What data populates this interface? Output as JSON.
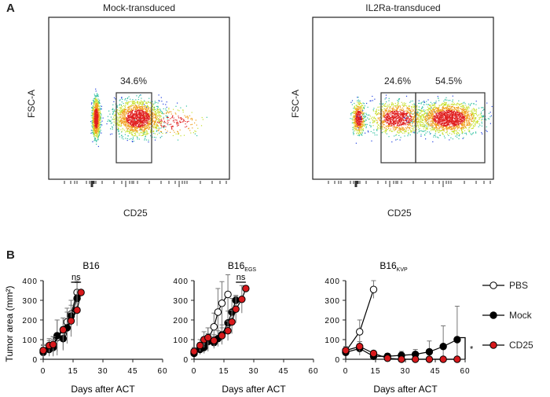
{
  "panel_a": {
    "letter": "A",
    "plots": [
      {
        "title": "Mock-transduced",
        "ylabel": "FSC-A",
        "xlabel": "CD25",
        "gates": [
          "34.6%"
        ]
      },
      {
        "title": "IL2Ra-transduced",
        "ylabel": "FSC-A",
        "xlabel": "CD25",
        "gates": [
          "24.6%",
          "54.5%"
        ]
      }
    ]
  },
  "panel_b": {
    "letter": "B"
  },
  "legend": {
    "items": [
      "PBS",
      "Mock",
      "CD25"
    ]
  },
  "colors": {
    "PBS": "#ffffff",
    "Mock": "#000000",
    "CD25": "#d7191c"
  },
  "chart_data": [
    {
      "type": "line",
      "title": "B16",
      "title_subscript": "",
      "xlabel": "Days after ACT",
      "ylabel": "Tumor area (mm²)",
      "xlim": [
        0,
        60
      ],
      "ylim": [
        0,
        400
      ],
      "xticks": [
        0,
        15,
        30,
        45,
        60
      ],
      "yticks": [
        0,
        100,
        200,
        300,
        400
      ],
      "annotation": "ns",
      "series": [
        {
          "name": "PBS",
          "x": [
            0,
            3,
            5,
            7,
            10,
            12,
            14,
            17
          ],
          "y": [
            40,
            55,
            65,
            110,
            130,
            190,
            230,
            340
          ],
          "err": [
            30,
            40,
            50,
            90,
            80,
            70,
            70,
            60
          ]
        },
        {
          "name": "Mock",
          "x": [
            0,
            3,
            5,
            7,
            10,
            12,
            14,
            17
          ],
          "y": [
            35,
            50,
            60,
            120,
            105,
            160,
            220,
            310
          ],
          "err": [
            25,
            30,
            40,
            80,
            60,
            80,
            80,
            80
          ]
        },
        {
          "name": "CD25",
          "x": [
            0,
            3,
            5,
            10,
            14,
            17,
            19
          ],
          "y": [
            45,
            70,
            75,
            150,
            195,
            250,
            340
          ],
          "err": [
            30,
            35,
            40,
            60,
            80,
            80,
            0
          ]
        }
      ]
    },
    {
      "type": "line",
      "title": "B16",
      "title_subscript": "EGS",
      "xlabel": "Days after ACT",
      "ylabel": "",
      "xlim": [
        0,
        60
      ],
      "ylim": [
        0,
        400
      ],
      "xticks": [
        0,
        15,
        30,
        45,
        60
      ],
      "yticks": [
        0,
        100,
        200,
        300,
        400
      ],
      "annotation": "ns",
      "series": [
        {
          "name": "PBS",
          "x": [
            0,
            3,
            5,
            7,
            10,
            12,
            14,
            17
          ],
          "y": [
            35,
            55,
            70,
            100,
            165,
            240,
            285,
            330
          ],
          "err": [
            20,
            30,
            40,
            60,
            70,
            120,
            110,
            100
          ]
        },
        {
          "name": "Mock",
          "x": [
            0,
            3,
            5,
            7,
            10,
            12,
            14,
            17,
            19,
            21
          ],
          "y": [
            30,
            50,
            60,
            90,
            85,
            105,
            125,
            185,
            240,
            300
          ],
          "err": [
            20,
            25,
            30,
            40,
            30,
            40,
            50,
            60,
            70,
            20
          ]
        },
        {
          "name": "CD25",
          "x": [
            0,
            3,
            5,
            7,
            10,
            14,
            17,
            19,
            21,
            24,
            26
          ],
          "y": [
            40,
            70,
            100,
            110,
            95,
            120,
            145,
            190,
            255,
            305,
            360
          ],
          "err": [
            20,
            30,
            40,
            50,
            30,
            40,
            50,
            60,
            70,
            70,
            0
          ]
        }
      ]
    },
    {
      "type": "line",
      "title": "B16",
      "title_subscript": "KVP",
      "xlabel": "Days after ACT",
      "ylabel": "",
      "xlim": [
        0,
        60
      ],
      "ylim": [
        0,
        400
      ],
      "xticks": [
        0,
        15,
        30,
        45,
        60
      ],
      "yticks": [
        0,
        100,
        200,
        300,
        400
      ],
      "annotation": "*",
      "series": [
        {
          "name": "PBS",
          "x": [
            0,
            7,
            14
          ],
          "y": [
            40,
            140,
            355
          ],
          "err": [
            20,
            60,
            45
          ]
        },
        {
          "name": "Mock",
          "x": [
            0,
            7,
            14,
            21,
            28,
            35,
            42,
            49,
            56
          ],
          "y": [
            35,
            55,
            15,
            15,
            20,
            25,
            38,
            65,
            100
          ],
          "err": [
            20,
            35,
            15,
            15,
            20,
            25,
            55,
            105,
            170
          ]
        },
        {
          "name": "CD25",
          "x": [
            0,
            7,
            14,
            21,
            28,
            35,
            42,
            49,
            56
          ],
          "y": [
            45,
            65,
            30,
            5,
            0,
            0,
            0,
            0,
            0
          ],
          "err": [
            20,
            25,
            10,
            5,
            0,
            0,
            0,
            0,
            0
          ]
        }
      ]
    }
  ]
}
